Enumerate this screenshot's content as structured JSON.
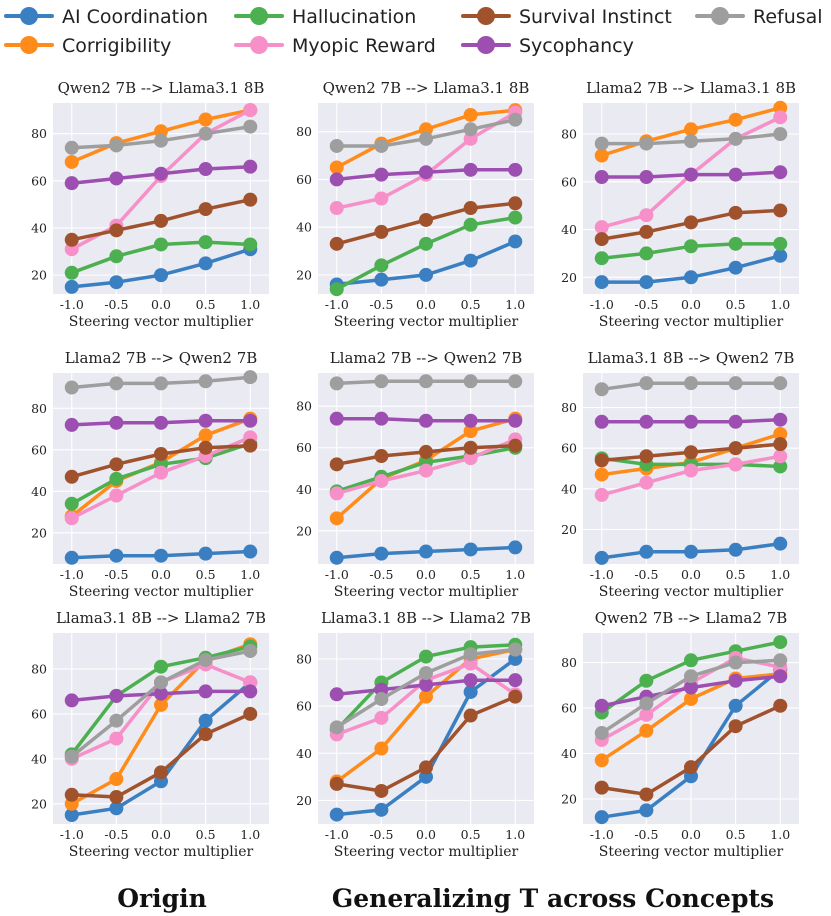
{
  "legend": [
    {
      "key": "ai",
      "label": "AI Coordination",
      "color": "#3a7fc1"
    },
    {
      "key": "cor",
      "label": "Corrigibility",
      "color": "#ff8c1a"
    },
    {
      "key": "hal",
      "label": "Hallucination",
      "color": "#4caf50"
    },
    {
      "key": "myo",
      "label": "Myopic Reward",
      "color": "#f78fc8"
    },
    {
      "key": "sur",
      "label": "Survival Instinct",
      "color": "#a0522d"
    },
    {
      "key": "syc",
      "label": "Sycophancy",
      "color": "#9c4fb0"
    },
    {
      "key": "ref",
      "label": "Refusal",
      "color": "#9e9e9e"
    }
  ],
  "captions": {
    "left": "Origin",
    "right": "Generalizing T across Concepts"
  },
  "chart_data": [
    {
      "type": "line",
      "title": "Qwen2 7B --> Llama3.1 8B",
      "xlabel": "Steering vector multiplier",
      "x": [
        -1.0,
        -0.5,
        0.0,
        0.5,
        1.0
      ],
      "x_tick_labels": [
        "-1.0",
        "-0.5",
        "0.0",
        "0.5",
        "1.0"
      ],
      "ylim": [
        12,
        93
      ],
      "yticks": [
        20,
        40,
        60,
        80
      ],
      "series": [
        {
          "name": "AI Coordination",
          "values": [
            15,
            17,
            20,
            25,
            31
          ]
        },
        {
          "name": "Corrigibility",
          "values": [
            68,
            76,
            81,
            86,
            90
          ]
        },
        {
          "name": "Hallucination",
          "values": [
            21,
            28,
            33,
            34,
            33
          ]
        },
        {
          "name": "Myopic Reward",
          "values": [
            31,
            41,
            62,
            80,
            90
          ]
        },
        {
          "name": "Survival Instinct",
          "values": [
            35,
            39,
            43,
            48,
            52
          ]
        },
        {
          "name": "Sycophancy",
          "values": [
            59,
            61,
            63,
            65,
            66
          ]
        },
        {
          "name": "Refusal",
          "values": [
            74,
            75,
            77,
            80,
            83
          ]
        }
      ]
    },
    {
      "type": "line",
      "title": "Qwen2 7B --> Llama3.1 8B",
      "xlabel": "Steering vector multiplier",
      "x": [
        -1.0,
        -0.5,
        0.0,
        0.5,
        1.0
      ],
      "x_tick_labels": [
        "-1.0",
        "-0.5",
        "0.0",
        "0.5",
        "1.0"
      ],
      "ylim": [
        12,
        92
      ],
      "yticks": [
        20,
        40,
        60,
        80
      ],
      "series": [
        {
          "name": "AI Coordination",
          "values": [
            16,
            18,
            20,
            26,
            34
          ]
        },
        {
          "name": "Corrigibility",
          "values": [
            65,
            75,
            81,
            87,
            89
          ]
        },
        {
          "name": "Hallucination",
          "values": [
            14,
            24,
            33,
            41,
            44
          ]
        },
        {
          "name": "Myopic Reward",
          "values": [
            48,
            52,
            62,
            77,
            88
          ]
        },
        {
          "name": "Survival Instinct",
          "values": [
            33,
            38,
            43,
            48,
            50
          ]
        },
        {
          "name": "Sycophancy",
          "values": [
            60,
            62,
            63,
            64,
            64
          ]
        },
        {
          "name": "Refusal",
          "values": [
            74,
            74,
            77,
            81,
            85
          ]
        }
      ]
    },
    {
      "type": "line",
      "title": "Llama2 7B --> Llama3.1 8B",
      "xlabel": "Steering vector multiplier",
      "x": [
        -1.0,
        -0.5,
        0.0,
        0.5,
        1.0
      ],
      "x_tick_labels": [
        "-1.0",
        "-0.5",
        "0.0",
        "0.5",
        "1.0"
      ],
      "ylim": [
        13,
        93
      ],
      "yticks": [
        20,
        40,
        60,
        80
      ],
      "series": [
        {
          "name": "AI Coordination",
          "values": [
            18,
            18,
            20,
            24,
            29
          ]
        },
        {
          "name": "Corrigibility",
          "values": [
            71,
            77,
            82,
            86,
            91
          ]
        },
        {
          "name": "Hallucination",
          "values": [
            28,
            30,
            33,
            34,
            34
          ]
        },
        {
          "name": "Myopic Reward",
          "values": [
            41,
            46,
            63,
            78,
            87
          ]
        },
        {
          "name": "Survival Instinct",
          "values": [
            36,
            39,
            43,
            47,
            48
          ]
        },
        {
          "name": "Sycophancy",
          "values": [
            62,
            62,
            63,
            63,
            64
          ]
        },
        {
          "name": "Refusal",
          "values": [
            76,
            76,
            77,
            78,
            80
          ]
        }
      ]
    },
    {
      "type": "line",
      "title": "Llama2 7B --> Qwen2 7B",
      "xlabel": "Steering vector multiplier",
      "x": [
        -1.0,
        -0.5,
        0.0,
        0.5,
        1.0
      ],
      "x_tick_labels": [
        "-1.0",
        "-0.5",
        "0.0",
        "0.5",
        "1.0"
      ],
      "ylim": [
        5,
        97
      ],
      "yticks": [
        20,
        40,
        60,
        80
      ],
      "series": [
        {
          "name": "AI Coordination",
          "values": [
            8,
            9,
            9,
            10,
            11
          ]
        },
        {
          "name": "Corrigibility",
          "values": [
            28,
            45,
            54,
            67,
            75
          ]
        },
        {
          "name": "Hallucination",
          "values": [
            34,
            46,
            53,
            56,
            63
          ]
        },
        {
          "name": "Myopic Reward",
          "values": [
            27,
            38,
            49,
            57,
            66
          ]
        },
        {
          "name": "Survival Instinct",
          "values": [
            47,
            53,
            58,
            61,
            62
          ]
        },
        {
          "name": "Sycophancy",
          "values": [
            72,
            73,
            73,
            74,
            74
          ]
        },
        {
          "name": "Refusal",
          "values": [
            90,
            92,
            92,
            93,
            95
          ]
        }
      ]
    },
    {
      "type": "line",
      "title": "Llama2 7B --> Qwen2 7B",
      "xlabel": "Steering vector multiplier",
      "x": [
        -1.0,
        -0.5,
        0.0,
        0.5,
        1.0
      ],
      "x_tick_labels": [
        "-1.0",
        "-0.5",
        "0.0",
        "0.5",
        "1.0"
      ],
      "ylim": [
        4,
        96
      ],
      "yticks": [
        20,
        40,
        60,
        80
      ],
      "series": [
        {
          "name": "AI Coordination",
          "values": [
            7,
            9,
            10,
            11,
            12
          ]
        },
        {
          "name": "Corrigibility",
          "values": [
            26,
            45,
            54,
            68,
            74
          ]
        },
        {
          "name": "Hallucination",
          "values": [
            39,
            46,
            53,
            56,
            60
          ]
        },
        {
          "name": "Myopic Reward",
          "values": [
            38,
            44,
            49,
            55,
            64
          ]
        },
        {
          "name": "Survival Instinct",
          "values": [
            52,
            56,
            58,
            60,
            61
          ]
        },
        {
          "name": "Sycophancy",
          "values": [
            74,
            74,
            73,
            73,
            73
          ]
        },
        {
          "name": "Refusal",
          "values": [
            91,
            92,
            92,
            92,
            92
          ]
        }
      ]
    },
    {
      "type": "line",
      "title": "Llama3.1 8B --> Qwen2 7B",
      "xlabel": "Steering vector multiplier",
      "x": [
        -1.0,
        -0.5,
        0.0,
        0.5,
        1.0
      ],
      "x_tick_labels": [
        "-1.0",
        "-0.5",
        "0.0",
        "0.5",
        "1.0"
      ],
      "ylim": [
        3,
        97
      ],
      "yticks": [
        20,
        40,
        60,
        80
      ],
      "series": [
        {
          "name": "AI Coordination",
          "values": [
            6,
            9,
            9,
            10,
            13
          ]
        },
        {
          "name": "Corrigibility",
          "values": [
            47,
            50,
            53,
            60,
            67
          ]
        },
        {
          "name": "Hallucination",
          "values": [
            55,
            52,
            52,
            52,
            51
          ]
        },
        {
          "name": "Myopic Reward",
          "values": [
            37,
            43,
            49,
            52,
            56
          ]
        },
        {
          "name": "Survival Instinct",
          "values": [
            54,
            56,
            58,
            60,
            62
          ]
        },
        {
          "name": "Sycophancy",
          "values": [
            73,
            73,
            73,
            73,
            74
          ]
        },
        {
          "name": "Refusal",
          "values": [
            89,
            92,
            92,
            92,
            92
          ]
        }
      ]
    },
    {
      "type": "line",
      "title": "Llama3.1 8B --> Llama2 7B",
      "xlabel": "Steering vector multiplier",
      "x": [
        -1.0,
        -0.5,
        0.0,
        0.5,
        1.0
      ],
      "x_tick_labels": [
        "-1.0",
        "-0.5",
        "0.0",
        "0.5",
        "1.0"
      ],
      "ylim": [
        11,
        96
      ],
      "yticks": [
        20,
        40,
        60,
        80
      ],
      "series": [
        {
          "name": "AI Coordination",
          "values": [
            15,
            18,
            30,
            57,
            74
          ]
        },
        {
          "name": "Corrigibility",
          "values": [
            20,
            31,
            64,
            84,
            91
          ]
        },
        {
          "name": "Hallucination",
          "values": [
            42,
            68,
            81,
            85,
            90
          ]
        },
        {
          "name": "Myopic Reward",
          "values": [
            40,
            49,
            74,
            82,
            74
          ]
        },
        {
          "name": "Survival Instinct",
          "values": [
            24,
            23,
            34,
            51,
            60
          ]
        },
        {
          "name": "Sycophancy",
          "values": [
            66,
            68,
            69,
            70,
            70
          ]
        },
        {
          "name": "Refusal",
          "values": [
            41,
            57,
            74,
            84,
            88
          ]
        }
      ]
    },
    {
      "type": "line",
      "title": "Llama3.1 8B --> Llama2 7B",
      "xlabel": "Steering vector multiplier",
      "x": [
        -1.0,
        -0.5,
        0.0,
        0.5,
        1.0
      ],
      "x_tick_labels": [
        "-1.0",
        "-0.5",
        "0.0",
        "0.5",
        "1.0"
      ],
      "ylim": [
        10,
        91
      ],
      "yticks": [
        20,
        40,
        60,
        80
      ],
      "series": [
        {
          "name": "AI Coordination",
          "values": [
            14,
            16,
            30,
            66,
            80
          ]
        },
        {
          "name": "Corrigibility",
          "values": [
            28,
            42,
            64,
            80,
            84
          ]
        },
        {
          "name": "Hallucination",
          "values": [
            50,
            70,
            81,
            85,
            86
          ]
        },
        {
          "name": "Myopic Reward",
          "values": [
            48,
            55,
            71,
            78,
            65
          ]
        },
        {
          "name": "Survival Instinct",
          "values": [
            27,
            24,
            34,
            56,
            64
          ]
        },
        {
          "name": "Sycophancy",
          "values": [
            65,
            67,
            69,
            71,
            71
          ]
        },
        {
          "name": "Refusal",
          "values": [
            51,
            63,
            74,
            82,
            84
          ]
        }
      ]
    },
    {
      "type": "line",
      "title": "Qwen2 7B --> Llama2 7B",
      "xlabel": "Steering vector multiplier",
      "x": [
        -1.0,
        -0.5,
        0.0,
        0.5,
        1.0
      ],
      "x_tick_labels": [
        "-1.0",
        "-0.5",
        "0.0",
        "0.5",
        "1.0"
      ],
      "ylim": [
        9,
        93
      ],
      "yticks": [
        20,
        40,
        60,
        80
      ],
      "series": [
        {
          "name": "AI Coordination",
          "values": [
            12,
            15,
            30,
            61,
            77
          ]
        },
        {
          "name": "Corrigibility",
          "values": [
            37,
            50,
            64,
            73,
            75
          ]
        },
        {
          "name": "Hallucination",
          "values": [
            58,
            72,
            81,
            85,
            89
          ]
        },
        {
          "name": "Myopic Reward",
          "values": [
            46,
            57,
            71,
            82,
            78
          ]
        },
        {
          "name": "Survival Instinct",
          "values": [
            25,
            22,
            34,
            52,
            61
          ]
        },
        {
          "name": "Sycophancy",
          "values": [
            61,
            65,
            69,
            72,
            74
          ]
        },
        {
          "name": "Refusal",
          "values": [
            49,
            62,
            74,
            80,
            81
          ]
        }
      ]
    }
  ]
}
